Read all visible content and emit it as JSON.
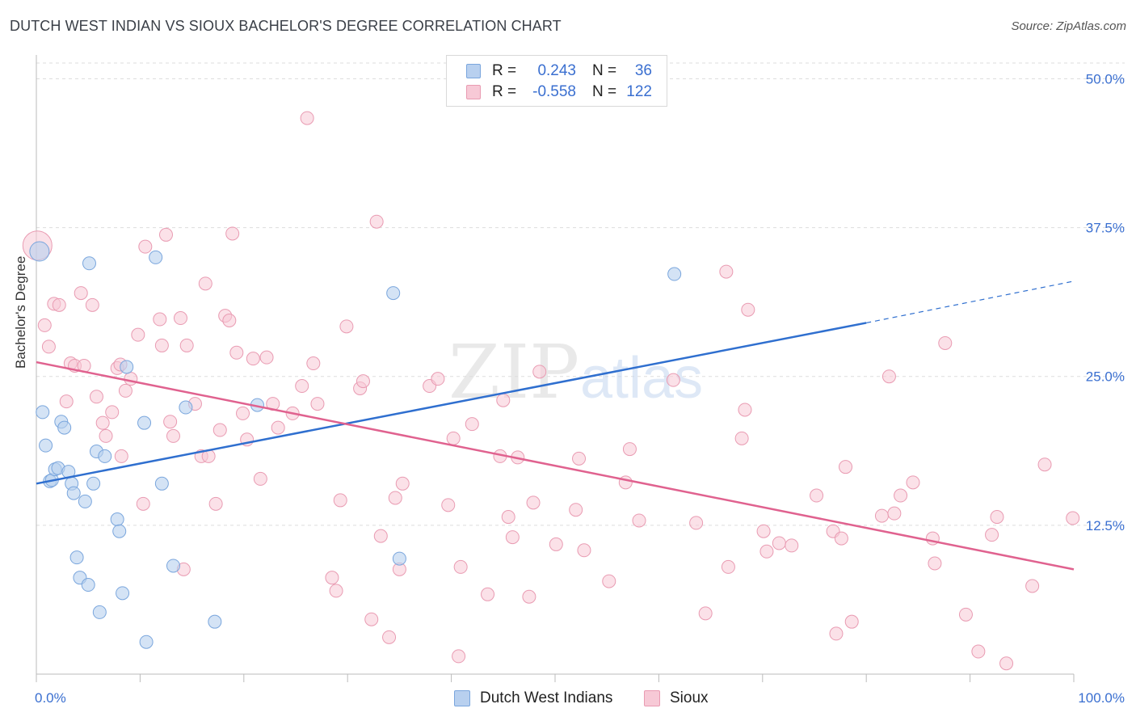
{
  "title": "DUTCH WEST INDIAN VS SIOUX BACHELOR'S DEGREE CORRELATION CHART",
  "source": "Source: ZipAtlas.com",
  "watermark": {
    "zip": "ZIP",
    "atlas": "atlas"
  },
  "legend": {
    "rows": [
      {
        "r_label": "R =",
        "r_value": "0.243",
        "n_label": "N =",
        "n_value": "36"
      },
      {
        "r_label": "R =",
        "r_value": "-0.558",
        "n_label": "N =",
        "n_value": "122"
      }
    ]
  },
  "bottom_legend": {
    "series1": "Dutch West Indians",
    "series2": "Sioux"
  },
  "colors": {
    "blue_fill": "#b8d0ef",
    "blue_stroke": "#7aa6dd",
    "blue_line": "#2f6fcf",
    "pink_fill": "#f7c9d6",
    "pink_stroke": "#e99bb2",
    "pink_line": "#e0628f",
    "tick_text": "#3a6fd0",
    "grid": "#dddddd"
  },
  "chart_data": {
    "type": "scatter",
    "title": "DUTCH WEST INDIAN VS SIOUX BACHELOR'S DEGREE CORRELATION CHART",
    "xlabel": "",
    "ylabel": "Bachelor's Degree",
    "xlim": [
      0,
      100
    ],
    "ylim": [
      0,
      52
    ],
    "x_tick_labels": [
      "0.0%",
      "100.0%"
    ],
    "y_ticks": [
      12.5,
      25.0,
      37.5,
      50.0
    ],
    "y_tick_labels": [
      "12.5%",
      "25.0%",
      "37.5%",
      "50.0%"
    ],
    "series": [
      {
        "name": "Dutch West Indians",
        "r": 0.243,
        "n": 36,
        "trend": {
          "x0": 0,
          "y0": 16.0,
          "x1": 80,
          "y1": 29.5,
          "x_dash_end": 100,
          "y_dash_end": 33.0
        },
        "points": [
          [
            0.3,
            35.5
          ],
          [
            0.6,
            22.0
          ],
          [
            0.9,
            19.2
          ],
          [
            1.3,
            16.2
          ],
          [
            1.5,
            16.3
          ],
          [
            1.8,
            17.2
          ],
          [
            2.1,
            17.3
          ],
          [
            2.4,
            21.2
          ],
          [
            2.7,
            20.7
          ],
          [
            3.1,
            17.0
          ],
          [
            3.4,
            16.0
          ],
          [
            3.6,
            15.2
          ],
          [
            4.7,
            14.5
          ],
          [
            5.1,
            34.5
          ],
          [
            5.5,
            16.0
          ],
          [
            5.8,
            18.7
          ],
          [
            6.6,
            18.3
          ],
          [
            3.9,
            9.8
          ],
          [
            4.2,
            8.1
          ],
          [
            5.0,
            7.5
          ],
          [
            6.1,
            5.2
          ],
          [
            7.8,
            13.0
          ],
          [
            8.0,
            12.0
          ],
          [
            8.3,
            6.8
          ],
          [
            8.7,
            25.8
          ],
          [
            10.4,
            21.1
          ],
          [
            11.5,
            35.0
          ],
          [
            12.1,
            16.0
          ],
          [
            13.2,
            9.1
          ],
          [
            14.4,
            22.4
          ],
          [
            17.2,
            4.4
          ],
          [
            21.3,
            22.6
          ],
          [
            10.6,
            2.7
          ],
          [
            34.4,
            32.0
          ],
          [
            35.0,
            9.7
          ],
          [
            61.5,
            33.6
          ]
        ]
      },
      {
        "name": "Sioux",
        "r": -0.558,
        "n": 122,
        "trend": {
          "x0": 0,
          "y0": 26.2,
          "x1": 100,
          "y1": 8.8
        },
        "points": [
          [
            0.1,
            36.0
          ],
          [
            0.8,
            29.3
          ],
          [
            1.2,
            27.5
          ],
          [
            1.7,
            31.1
          ],
          [
            2.2,
            31.0
          ],
          [
            2.9,
            22.9
          ],
          [
            3.3,
            26.1
          ],
          [
            3.7,
            25.9
          ],
          [
            4.3,
            32.0
          ],
          [
            4.6,
            25.9
          ],
          [
            5.4,
            31.0
          ],
          [
            5.8,
            23.3
          ],
          [
            6.4,
            21.1
          ],
          [
            6.7,
            20.0
          ],
          [
            7.3,
            22.0
          ],
          [
            7.8,
            25.7
          ],
          [
            8.1,
            26.0
          ],
          [
            8.2,
            18.3
          ],
          [
            8.6,
            23.8
          ],
          [
            9.1,
            24.8
          ],
          [
            9.8,
            28.5
          ],
          [
            10.3,
            14.3
          ],
          [
            10.5,
            35.9
          ],
          [
            11.9,
            29.8
          ],
          [
            12.1,
            27.6
          ],
          [
            12.5,
            36.9
          ],
          [
            12.9,
            21.2
          ],
          [
            13.2,
            20.0
          ],
          [
            13.9,
            29.9
          ],
          [
            14.2,
            8.8
          ],
          [
            14.5,
            27.6
          ],
          [
            15.3,
            22.7
          ],
          [
            15.9,
            18.3
          ],
          [
            16.3,
            32.8
          ],
          [
            16.6,
            18.3
          ],
          [
            17.3,
            14.3
          ],
          [
            17.7,
            20.5
          ],
          [
            18.2,
            30.1
          ],
          [
            18.6,
            29.7
          ],
          [
            18.9,
            37.0
          ],
          [
            19.3,
            27.0
          ],
          [
            19.9,
            21.9
          ],
          [
            20.3,
            19.7
          ],
          [
            20.9,
            26.5
          ],
          [
            21.6,
            16.4
          ],
          [
            22.2,
            26.6
          ],
          [
            22.8,
            22.7
          ],
          [
            23.3,
            20.7
          ],
          [
            24.7,
            21.9
          ],
          [
            25.6,
            24.2
          ],
          [
            26.1,
            46.7
          ],
          [
            26.7,
            26.1
          ],
          [
            27.1,
            22.7
          ],
          [
            28.5,
            8.1
          ],
          [
            28.9,
            7.0
          ],
          [
            29.3,
            14.6
          ],
          [
            29.9,
            29.2
          ],
          [
            31.2,
            24.0
          ],
          [
            31.5,
            24.6
          ],
          [
            32.3,
            4.6
          ],
          [
            32.8,
            38.0
          ],
          [
            33.2,
            11.6
          ],
          [
            34.0,
            3.1
          ],
          [
            34.6,
            14.8
          ],
          [
            35.0,
            8.8
          ],
          [
            35.3,
            16.0
          ],
          [
            37.9,
            24.2
          ],
          [
            38.7,
            24.8
          ],
          [
            39.7,
            14.2
          ],
          [
            40.2,
            19.8
          ],
          [
            40.7,
            1.5
          ],
          [
            40.9,
            9.0
          ],
          [
            42.0,
            21.0
          ],
          [
            43.5,
            6.7
          ],
          [
            44.7,
            18.3
          ],
          [
            45.0,
            23.0
          ],
          [
            45.5,
            13.2
          ],
          [
            45.9,
            11.5
          ],
          [
            46.4,
            18.2
          ],
          [
            47.5,
            6.5
          ],
          [
            47.9,
            14.4
          ],
          [
            48.5,
            25.4
          ],
          [
            50.1,
            10.9
          ],
          [
            52.0,
            13.8
          ],
          [
            52.3,
            18.1
          ],
          [
            52.8,
            10.4
          ],
          [
            55.2,
            7.8
          ],
          [
            56.8,
            16.1
          ],
          [
            57.2,
            18.9
          ],
          [
            58.1,
            12.9
          ],
          [
            61.4,
            24.7
          ],
          [
            63.6,
            12.7
          ],
          [
            64.5,
            5.1
          ],
          [
            66.5,
            33.8
          ],
          [
            66.7,
            9.0
          ],
          [
            68.0,
            19.8
          ],
          [
            68.3,
            22.2
          ],
          [
            68.6,
            30.6
          ],
          [
            70.1,
            12.0
          ],
          [
            70.4,
            10.3
          ],
          [
            71.6,
            11.0
          ],
          [
            72.8,
            10.8
          ],
          [
            75.2,
            15.0
          ],
          [
            76.8,
            12.0
          ],
          [
            77.1,
            3.4
          ],
          [
            77.6,
            11.4
          ],
          [
            78.0,
            17.4
          ],
          [
            78.6,
            4.4
          ],
          [
            81.5,
            13.3
          ],
          [
            82.2,
            25.0
          ],
          [
            82.7,
            13.5
          ],
          [
            83.3,
            15.0
          ],
          [
            84.5,
            16.1
          ],
          [
            86.4,
            11.4
          ],
          [
            86.6,
            9.3
          ],
          [
            87.6,
            27.8
          ],
          [
            89.6,
            5.0
          ],
          [
            90.8,
            1.9
          ],
          [
            92.1,
            11.7
          ],
          [
            92.6,
            13.2
          ],
          [
            93.5,
            0.9
          ],
          [
            96.0,
            7.4
          ],
          [
            97.2,
            17.6
          ],
          [
            99.9,
            13.1
          ]
        ]
      }
    ]
  }
}
